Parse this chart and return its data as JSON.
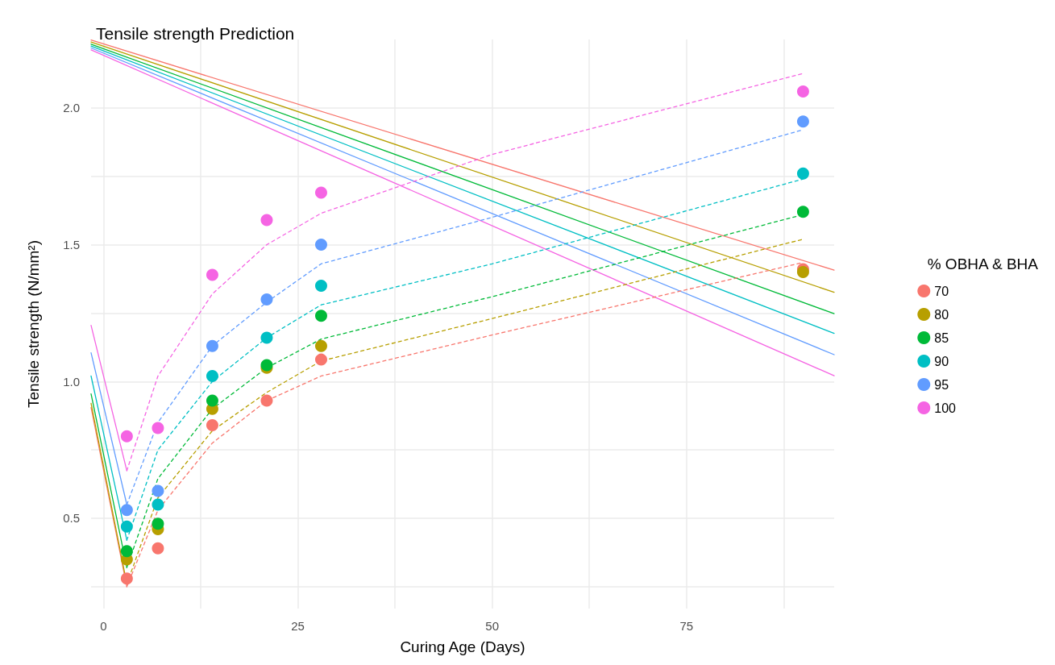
{
  "chart_data": {
    "type": "scatter",
    "title": "Tensile strength Prediction",
    "xlabel": "Curing Age (Days)",
    "ylabel": "Tensile strength (N/mm²)",
    "legend_title": "% OBHA & BHA",
    "legend": "right",
    "grid": true,
    "xlim": [
      -1.6,
      94
    ],
    "ylim": [
      0.17,
      2.25
    ],
    "xticks": [
      0,
      {
        "value": 12.5,
        "label": null
      },
      25,
      {
        "value": 37.5,
        "label": null
      },
      50,
      {
        "value": 62.5,
        "label": null
      },
      75,
      {
        "value": 87.5,
        "label": null
      }
    ],
    "yticks": [
      {
        "value": 0.25,
        "label": null
      },
      {
        "value": 0.5,
        "label": "0.5"
      },
      {
        "value": 0.75,
        "label": null
      },
      {
        "value": 1.0,
        "label": "1.0"
      },
      {
        "value": 1.25,
        "label": null
      },
      {
        "value": 1.5,
        "label": "1.5"
      },
      {
        "value": 1.75,
        "label": null
      },
      {
        "value": 2.0,
        "label": "2.0"
      }
    ],
    "series": [
      {
        "type": "line",
        "line_style": "solid",
        "marker": "none",
        "color": "#f8766d",
        "x": [
          -1.6,
          94
        ],
        "values": [
          2.248,
          1.407
        ]
      },
      {
        "type": "line",
        "line_style": "solid",
        "marker": "none",
        "color": "#b79f00",
        "x": [
          -1.6,
          94
        ],
        "values": [
          2.241,
          1.326
        ]
      },
      {
        "type": "line",
        "line_style": "solid",
        "marker": "none",
        "color": "#00ba38",
        "x": [
          -1.6,
          94
        ],
        "values": [
          2.233,
          1.248
        ]
      },
      {
        "type": "line",
        "line_style": "solid",
        "marker": "none",
        "color": "#00bfc4",
        "x": [
          -1.6,
          94
        ],
        "values": [
          2.226,
          1.176
        ]
      },
      {
        "type": "line",
        "line_style": "solid",
        "marker": "none",
        "color": "#619cff",
        "x": [
          -1.6,
          94
        ],
        "values": [
          2.219,
          1.098
        ]
      },
      {
        "type": "line",
        "line_style": "solid",
        "marker": "none",
        "color": "#f564e3",
        "x": [
          -1.6,
          94
        ],
        "values": [
          2.212,
          1.021
        ]
      },
      {
        "type": "line",
        "line_style": "solid",
        "marker": "none",
        "color": "#f8766d",
        "x": [
          -1.6,
          3
        ],
        "values": [
          0.905,
          0.25
        ]
      },
      {
        "type": "line",
        "line_style": "solid",
        "marker": "none",
        "color": "#b79f00",
        "x": [
          -1.6,
          3
        ],
        "values": [
          0.92,
          0.26
        ]
      },
      {
        "type": "line",
        "line_style": "solid",
        "marker": "none",
        "color": "#00ba38",
        "x": [
          -1.6,
          3
        ],
        "values": [
          0.955,
          0.32
        ]
      },
      {
        "type": "line",
        "line_style": "solid",
        "marker": "none",
        "color": "#00bfc4",
        "x": [
          -1.6,
          3
        ],
        "values": [
          1.02,
          0.42
        ]
      },
      {
        "type": "line",
        "line_style": "solid",
        "marker": "none",
        "color": "#619cff",
        "x": [
          -1.6,
          3
        ],
        "values": [
          1.105,
          0.55
        ]
      },
      {
        "type": "line",
        "line_style": "solid",
        "marker": "none",
        "color": "#f564e3",
        "x": [
          -1.6,
          3
        ],
        "values": [
          1.205,
          0.674
        ]
      },
      {
        "type": "line",
        "line_style": "dashed",
        "marker": "none",
        "color": "#f8766d",
        "x": [
          3,
          7,
          14,
          21,
          28,
          50,
          90
        ],
        "values": [
          0.25,
          0.53,
          0.775,
          0.93,
          1.02,
          1.17,
          1.435
        ]
      },
      {
        "type": "line",
        "line_style": "dashed",
        "marker": "none",
        "color": "#b79f00",
        "x": [
          3,
          7,
          14,
          21,
          28,
          50,
          90
        ],
        "values": [
          0.26,
          0.575,
          0.82,
          0.96,
          1.075,
          1.23,
          1.52
        ]
      },
      {
        "type": "line",
        "line_style": "dashed",
        "marker": "none",
        "color": "#00ba38",
        "x": [
          3,
          7,
          14,
          21,
          28,
          50,
          90
        ],
        "values": [
          0.32,
          0.645,
          0.9,
          1.05,
          1.155,
          1.31,
          1.61
        ]
      },
      {
        "type": "line",
        "line_style": "dashed",
        "marker": "none",
        "color": "#00bfc4",
        "x": [
          3,
          7,
          14,
          21,
          28,
          50,
          90
        ],
        "values": [
          0.42,
          0.75,
          1.0,
          1.16,
          1.28,
          1.43,
          1.74
        ]
      },
      {
        "type": "line",
        "line_style": "dashed",
        "marker": "none",
        "color": "#619cff",
        "x": [
          3,
          7,
          14,
          21,
          28,
          50,
          90
        ],
        "values": [
          0.55,
          0.85,
          1.13,
          1.29,
          1.43,
          1.6,
          1.92
        ]
      },
      {
        "type": "line",
        "line_style": "dashed",
        "marker": "none",
        "color": "#f564e3",
        "x": [
          3,
          7,
          14,
          21,
          28,
          50,
          90
        ],
        "values": [
          0.674,
          1.02,
          1.32,
          1.5,
          1.615,
          1.83,
          2.126
        ]
      },
      {
        "marker": "circle",
        "name": "70",
        "color": "#f8766d",
        "x": [
          3,
          7,
          14,
          21,
          28,
          90
        ],
        "values": [
          0.28,
          0.39,
          0.84,
          0.93,
          1.08,
          1.41
        ]
      },
      {
        "marker": "circle",
        "name": "80",
        "color": "#b79f00",
        "x": [
          3,
          7,
          14,
          21,
          28,
          90
        ],
        "values": [
          0.35,
          0.46,
          0.9,
          1.05,
          1.13,
          1.4
        ]
      },
      {
        "marker": "circle",
        "name": "85",
        "color": "#00ba38",
        "x": [
          3,
          7,
          14,
          21,
          28,
          90
        ],
        "values": [
          0.38,
          0.48,
          0.93,
          1.06,
          1.24,
          1.62
        ]
      },
      {
        "marker": "circle",
        "name": "90",
        "color": "#00bfc4",
        "x": [
          3,
          7,
          14,
          21,
          28,
          90
        ],
        "values": [
          0.47,
          0.55,
          1.02,
          1.16,
          1.35,
          1.76
        ]
      },
      {
        "marker": "circle",
        "name": "95",
        "color": "#619cff",
        "x": [
          3,
          7,
          14,
          21,
          28,
          90
        ],
        "values": [
          0.53,
          0.6,
          1.13,
          1.3,
          1.5,
          1.95
        ]
      },
      {
        "marker": "circle",
        "name": "100",
        "color": "#f564e3",
        "x": [
          3,
          7,
          14,
          21,
          28,
          90
        ],
        "values": [
          0.8,
          0.83,
          1.39,
          1.59,
          1.69,
          2.06
        ]
      }
    ]
  }
}
